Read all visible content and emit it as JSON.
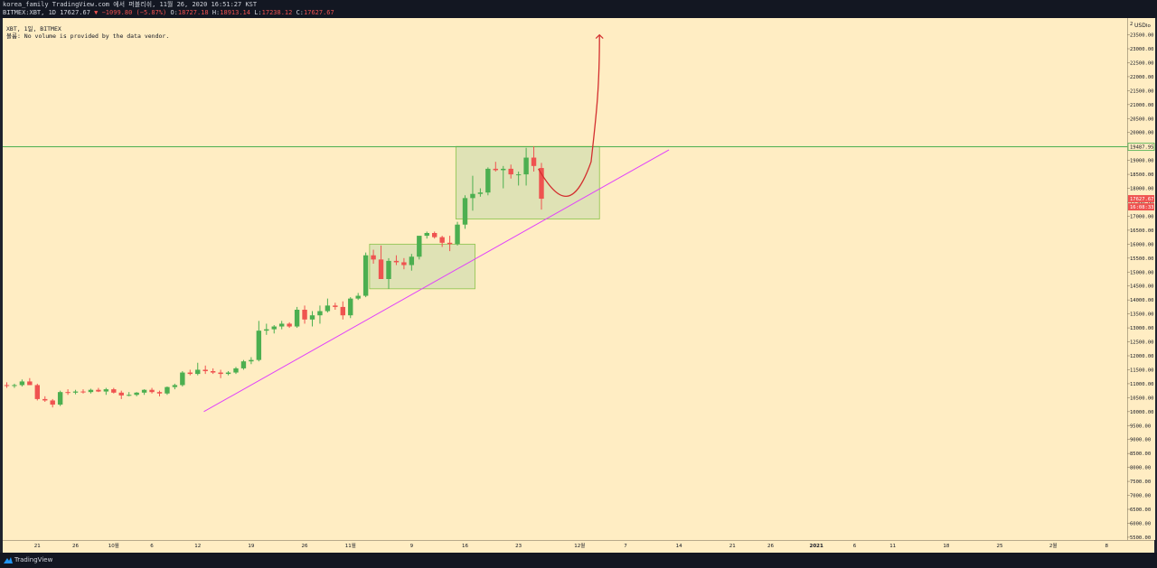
{
  "header": {
    "publish_line": "korea_family TradingView.com 에서 퍼블리쉬, 11월 26, 2020 16:51:27 KST",
    "symbol_line": "BITMEX:XBT, 1D 17627.67",
    "change": "▼ −1099.80 (−5.87%)",
    "ohlc": [
      {
        "label": "O:",
        "value": "18727.18"
      },
      {
        "label": "H:",
        "value": "18913.14"
      },
      {
        "label": "L:",
        "value": "17238.12"
      },
      {
        "label": "C:",
        "value": "17627.67"
      }
    ]
  },
  "legend": {
    "line1": "XBT, 1일, BITMEX",
    "line2": "볼륨: No volume is provided by the data vendor."
  },
  "footer": {
    "brand": "TradingView"
  },
  "colors": {
    "up": "#4caf50",
    "down": "#ef5350",
    "background": "#ffedc3",
    "trendline": "#e040fb",
    "horizontal_line": "#4caf50",
    "projection": "#d32f2f",
    "box_fill": "#d4ddb0"
  },
  "chart_data": {
    "type": "candlestick",
    "currency": "USD",
    "scale_mode": "lo",
    "ylim": [
      5400,
      24100
    ],
    "y_ticks": [
      5500,
      6000,
      6500,
      7000,
      7500,
      8000,
      8500,
      9000,
      9500,
      10000,
      10500,
      11000,
      11500,
      12000,
      12500,
      13000,
      13500,
      14000,
      14500,
      15000,
      15500,
      16000,
      16500,
      17000,
      17500,
      18000,
      18500,
      19000,
      19500,
      20000,
      20500,
      21000,
      21500,
      22000,
      22500,
      23000,
      23500
    ],
    "top_tick_partial": "2",
    "x_ticks": [
      {
        "i": 4,
        "label": "21"
      },
      {
        "i": 9,
        "label": "26"
      },
      {
        "i": 14,
        "label": "10월"
      },
      {
        "i": 19,
        "label": "6"
      },
      {
        "i": 25,
        "label": "12"
      },
      {
        "i": 32,
        "label": "19"
      },
      {
        "i": 39,
        "label": "26"
      },
      {
        "i": 45,
        "label": "11월"
      },
      {
        "i": 53,
        "label": "9"
      },
      {
        "i": 60,
        "label": "16"
      },
      {
        "i": 67,
        "label": "23"
      },
      {
        "i": 75,
        "label": "12월"
      },
      {
        "i": 81,
        "label": "7"
      },
      {
        "i": 88,
        "label": "14"
      },
      {
        "i": 95,
        "label": "21"
      },
      {
        "i": 100,
        "label": "26"
      },
      {
        "i": 106,
        "label": "2021"
      },
      {
        "i": 111,
        "label": "6"
      },
      {
        "i": 116,
        "label": "11"
      },
      {
        "i": 123,
        "label": "18"
      },
      {
        "i": 130,
        "label": "25"
      },
      {
        "i": 137,
        "label": "2월"
      },
      {
        "i": 144,
        "label": "8"
      }
    ],
    "candles": [
      {
        "o": 10950,
        "h": 11050,
        "l": 10850,
        "c": 10920
      },
      {
        "o": 10920,
        "h": 11000,
        "l": 10850,
        "c": 10950
      },
      {
        "o": 10950,
        "h": 11150,
        "l": 10900,
        "c": 11080
      },
      {
        "o": 11080,
        "h": 11200,
        "l": 10950,
        "c": 10950
      },
      {
        "o": 10950,
        "h": 11000,
        "l": 10400,
        "c": 10450
      },
      {
        "o": 10450,
        "h": 10550,
        "l": 10350,
        "c": 10400
      },
      {
        "o": 10400,
        "h": 10450,
        "l": 10150,
        "c": 10250
      },
      {
        "o": 10250,
        "h": 10750,
        "l": 10200,
        "c": 10700
      },
      {
        "o": 10700,
        "h": 10800,
        "l": 10600,
        "c": 10680
      },
      {
        "o": 10680,
        "h": 10780,
        "l": 10620,
        "c": 10720
      },
      {
        "o": 10720,
        "h": 10800,
        "l": 10650,
        "c": 10700
      },
      {
        "o": 10700,
        "h": 10820,
        "l": 10650,
        "c": 10780
      },
      {
        "o": 10780,
        "h": 10850,
        "l": 10700,
        "c": 10720
      },
      {
        "o": 10720,
        "h": 10850,
        "l": 10600,
        "c": 10800
      },
      {
        "o": 10800,
        "h": 10850,
        "l": 10650,
        "c": 10680
      },
      {
        "o": 10680,
        "h": 10750,
        "l": 10450,
        "c": 10580
      },
      {
        "o": 10580,
        "h": 10700,
        "l": 10550,
        "c": 10600
      },
      {
        "o": 10600,
        "h": 10700,
        "l": 10550,
        "c": 10680
      },
      {
        "o": 10680,
        "h": 10800,
        "l": 10600,
        "c": 10780
      },
      {
        "o": 10780,
        "h": 10850,
        "l": 10650,
        "c": 10700
      },
      {
        "o": 10700,
        "h": 10750,
        "l": 10550,
        "c": 10650
      },
      {
        "o": 10650,
        "h": 10900,
        "l": 10600,
        "c": 10880
      },
      {
        "o": 10880,
        "h": 11000,
        "l": 10800,
        "c": 10950
      },
      {
        "o": 10950,
        "h": 11450,
        "l": 10900,
        "c": 11400
      },
      {
        "o": 11400,
        "h": 11500,
        "l": 11300,
        "c": 11350
      },
      {
        "o": 11350,
        "h": 11750,
        "l": 11300,
        "c": 11500
      },
      {
        "o": 11500,
        "h": 11650,
        "l": 11350,
        "c": 11450
      },
      {
        "o": 11450,
        "h": 11550,
        "l": 11350,
        "c": 11400
      },
      {
        "o": 11400,
        "h": 11500,
        "l": 11200,
        "c": 11350
      },
      {
        "o": 11350,
        "h": 11450,
        "l": 11300,
        "c": 11400
      },
      {
        "o": 11400,
        "h": 11600,
        "l": 11350,
        "c": 11550
      },
      {
        "o": 11550,
        "h": 11850,
        "l": 11500,
        "c": 11800
      },
      {
        "o": 11800,
        "h": 11950,
        "l": 11700,
        "c": 11850
      },
      {
        "o": 11850,
        "h": 13250,
        "l": 11800,
        "c": 12900
      },
      {
        "o": 12900,
        "h": 13150,
        "l": 12750,
        "c": 12950
      },
      {
        "o": 12950,
        "h": 13100,
        "l": 12800,
        "c": 13050
      },
      {
        "o": 13050,
        "h": 13250,
        "l": 12950,
        "c": 13150
      },
      {
        "o": 13150,
        "h": 13200,
        "l": 13000,
        "c": 13050
      },
      {
        "o": 13050,
        "h": 13750,
        "l": 13000,
        "c": 13650
      },
      {
        "o": 13650,
        "h": 13800,
        "l": 13150,
        "c": 13300
      },
      {
        "o": 13300,
        "h": 13600,
        "l": 13050,
        "c": 13450
      },
      {
        "o": 13450,
        "h": 13800,
        "l": 13150,
        "c": 13600
      },
      {
        "o": 13600,
        "h": 14050,
        "l": 13550,
        "c": 13800
      },
      {
        "o": 13800,
        "h": 13900,
        "l": 13650,
        "c": 13750
      },
      {
        "o": 13750,
        "h": 13950,
        "l": 13300,
        "c": 13450
      },
      {
        "o": 13450,
        "h": 14100,
        "l": 13350,
        "c": 14050
      },
      {
        "o": 14050,
        "h": 14250,
        "l": 14000,
        "c": 14150
      },
      {
        "o": 14150,
        "h": 15700,
        "l": 14100,
        "c": 15600
      },
      {
        "o": 15600,
        "h": 15800,
        "l": 15300,
        "c": 15450
      },
      {
        "o": 15450,
        "h": 15950,
        "l": 14750,
        "c": 14750
      },
      {
        "o": 14750,
        "h": 15500,
        "l": 14400,
        "c": 15400
      },
      {
        "o": 15400,
        "h": 15600,
        "l": 15250,
        "c": 15350
      },
      {
        "o": 15350,
        "h": 15500,
        "l": 15100,
        "c": 15250
      },
      {
        "o": 15250,
        "h": 15650,
        "l": 15050,
        "c": 15550
      },
      {
        "o": 15550,
        "h": 16200,
        "l": 15450,
        "c": 16300
      },
      {
        "o": 16300,
        "h": 16450,
        "l": 16200,
        "c": 16400
      },
      {
        "o": 16400,
        "h": 16450,
        "l": 16200,
        "c": 16250
      },
      {
        "o": 16250,
        "h": 16300,
        "l": 15900,
        "c": 16050
      },
      {
        "o": 16050,
        "h": 16300,
        "l": 15750,
        "c": 16000
      },
      {
        "o": 16000,
        "h": 16800,
        "l": 15950,
        "c": 16700
      },
      {
        "o": 16700,
        "h": 17750,
        "l": 16550,
        "c": 17650
      },
      {
        "o": 17650,
        "h": 18450,
        "l": 17200,
        "c": 17800
      },
      {
        "o": 17800,
        "h": 18000,
        "l": 17700,
        "c": 17850
      },
      {
        "o": 17850,
        "h": 18750,
        "l": 17750,
        "c": 18700
      },
      {
        "o": 18700,
        "h": 18950,
        "l": 18600,
        "c": 18650
      },
      {
        "o": 18650,
        "h": 18800,
        "l": 18000,
        "c": 18700
      },
      {
        "o": 18700,
        "h": 18850,
        "l": 18350,
        "c": 18500
      },
      {
        "o": 18500,
        "h": 18600,
        "l": 18100,
        "c": 18500
      },
      {
        "o": 18500,
        "h": 19450,
        "l": 18100,
        "c": 19100
      },
      {
        "o": 19100,
        "h": 19500,
        "l": 18600,
        "c": 18800
      },
      {
        "o": 18727.18,
        "h": 18913.14,
        "l": 17238.12,
        "c": 17627.67
      }
    ],
    "drawings": {
      "horizontal_line": {
        "price": 19487.95
      },
      "trendline": {
        "i1": 25.8,
        "p1": 10000,
        "i2": 86.7,
        "p2": 19380
      },
      "boxes": [
        {
          "i1": 47.5,
          "i2": 61.3,
          "p_top": 16000,
          "p_bottom": 14400
        },
        {
          "i1": 58.8,
          "i2": 77.6,
          "p_top": 19500,
          "p_bottom": 16900
        }
      ],
      "projection": [
        {
          "i": 69.6,
          "p": 18700
        },
        {
          "i": 72.3,
          "p": 17700
        },
        {
          "i": 74.3,
          "p": 17700
        },
        {
          "i": 76.5,
          "p": 18950
        },
        {
          "i": 77.2,
          "p": 21000
        },
        {
          "i": 77.6,
          "p": 23500
        }
      ]
    },
    "price_labels": [
      {
        "value": "19487.95",
        "style": "line"
      },
      {
        "value": "17627.67",
        "style": "red"
      },
      {
        "value": "16:08:33",
        "style": "red",
        "offset": 1
      }
    ],
    "y_axis_side": "right",
    "grid": false
  }
}
